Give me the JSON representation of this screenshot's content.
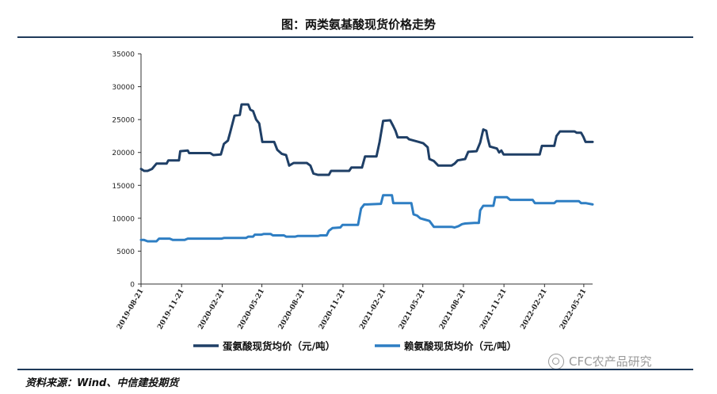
{
  "title": "图：两类氨基酸现货价格走势",
  "source": "资料来源：Wind、中信建投期货",
  "watermark": "CFC农产品研究",
  "colors": {
    "series1": "#1f3f66",
    "series2": "#2e7ec3",
    "axis": "#333333",
    "rule": "#1f3a5a"
  },
  "chart_data": {
    "type": "line",
    "ylim": [
      0,
      35000
    ],
    "yticks": [
      0,
      5000,
      10000,
      15000,
      20000,
      25000,
      30000,
      35000
    ],
    "xlim": [
      "2019-08-21",
      "2022-06-10"
    ],
    "xticks": [
      "2019-08-21",
      "2019-11-21",
      "2020-02-21",
      "2020-05-21",
      "2020-08-21",
      "2020-11-21",
      "2021-02-21",
      "2021-05-21",
      "2021-08-21",
      "2021-11-21",
      "2022-02-21",
      "2022-05-21"
    ],
    "legend_position": "bottom",
    "grid": false,
    "series": [
      {
        "name": "蛋氨酸现货均价（元/吨）",
        "points": [
          [
            "2019-08-21",
            17500
          ],
          [
            "2019-08-28",
            17200
          ],
          [
            "2019-09-05",
            17200
          ],
          [
            "2019-09-15",
            17500
          ],
          [
            "2019-09-25",
            18300
          ],
          [
            "2019-10-18",
            18300
          ],
          [
            "2019-10-22",
            18800
          ],
          [
            "2019-11-15",
            18800
          ],
          [
            "2019-11-18",
            20200
          ],
          [
            "2019-12-05",
            20300
          ],
          [
            "2019-12-08",
            19900
          ],
          [
            "2020-01-25",
            19900
          ],
          [
            "2020-02-01",
            19600
          ],
          [
            "2020-02-18",
            19700
          ],
          [
            "2020-02-25",
            21300
          ],
          [
            "2020-03-05",
            21800
          ],
          [
            "2020-03-10",
            23000
          ],
          [
            "2020-03-20",
            25600
          ],
          [
            "2020-04-01",
            25700
          ],
          [
            "2020-04-05",
            27300
          ],
          [
            "2020-04-20",
            27300
          ],
          [
            "2020-04-25",
            26500
          ],
          [
            "2020-05-01",
            26300
          ],
          [
            "2020-05-08",
            25000
          ],
          [
            "2020-05-15",
            24400
          ],
          [
            "2020-05-22",
            21600
          ],
          [
            "2020-06-18",
            21600
          ],
          [
            "2020-06-25",
            20400
          ],
          [
            "2020-07-05",
            19800
          ],
          [
            "2020-07-15",
            19600
          ],
          [
            "2020-07-22",
            18000
          ],
          [
            "2020-08-01",
            18400
          ],
          [
            "2020-08-31",
            18400
          ],
          [
            "2020-09-08",
            18000
          ],
          [
            "2020-09-15",
            16800
          ],
          [
            "2020-09-25",
            16600
          ],
          [
            "2020-10-20",
            16600
          ],
          [
            "2020-10-25",
            17200
          ],
          [
            "2020-12-05",
            17200
          ],
          [
            "2020-12-10",
            17700
          ],
          [
            "2021-01-03",
            17700
          ],
          [
            "2021-01-10",
            19400
          ],
          [
            "2021-02-05",
            19400
          ],
          [
            "2021-02-12",
            21600
          ],
          [
            "2021-02-20",
            24800
          ],
          [
            "2021-03-08",
            24900
          ],
          [
            "2021-03-15",
            24000
          ],
          [
            "2021-03-20",
            23300
          ],
          [
            "2021-03-25",
            22300
          ],
          [
            "2021-04-15",
            22300
          ],
          [
            "2021-04-20",
            22000
          ],
          [
            "2021-05-12",
            21600
          ],
          [
            "2021-05-22",
            21400
          ],
          [
            "2021-06-01",
            20800
          ],
          [
            "2021-06-05",
            19000
          ],
          [
            "2021-06-15",
            18700
          ],
          [
            "2021-06-25",
            18000
          ],
          [
            "2021-07-25",
            18000
          ],
          [
            "2021-08-01",
            18300
          ],
          [
            "2021-08-08",
            18800
          ],
          [
            "2021-08-25",
            19000
          ],
          [
            "2021-09-01",
            20100
          ],
          [
            "2021-09-20",
            20200
          ],
          [
            "2021-09-28",
            21500
          ],
          [
            "2021-10-05",
            23500
          ],
          [
            "2021-10-12",
            23300
          ],
          [
            "2021-10-15",
            22200
          ],
          [
            "2021-10-20",
            20900
          ],
          [
            "2021-11-05",
            20600
          ],
          [
            "2021-11-10",
            20000
          ],
          [
            "2021-11-15",
            20300
          ],
          [
            "2021-11-20",
            19700
          ],
          [
            "2022-02-10",
            19700
          ],
          [
            "2022-02-15",
            21000
          ],
          [
            "2022-03-15",
            21000
          ],
          [
            "2022-03-20",
            22500
          ],
          [
            "2022-03-28",
            23200
          ],
          [
            "2022-04-30",
            23200
          ],
          [
            "2022-05-05",
            23000
          ],
          [
            "2022-05-15",
            23000
          ],
          [
            "2022-05-20",
            22400
          ],
          [
            "2022-05-25",
            21600
          ],
          [
            "2022-06-10",
            21600
          ]
        ]
      },
      {
        "name": "赖氨酸现货均价（元/吨）",
        "points": [
          [
            "2019-08-21",
            6700
          ],
          [
            "2019-08-28",
            6700
          ],
          [
            "2019-09-05",
            6500
          ],
          [
            "2019-09-25",
            6500
          ],
          [
            "2019-10-01",
            6900
          ],
          [
            "2019-10-25",
            6900
          ],
          [
            "2019-11-01",
            6700
          ],
          [
            "2019-11-28",
            6700
          ],
          [
            "2019-12-05",
            6900
          ],
          [
            "2020-02-20",
            6900
          ],
          [
            "2020-02-25",
            7000
          ],
          [
            "2020-04-15",
            7000
          ],
          [
            "2020-04-20",
            7200
          ],
          [
            "2020-05-01",
            7200
          ],
          [
            "2020-05-05",
            7500
          ],
          [
            "2020-05-20",
            7500
          ],
          [
            "2020-05-25",
            7600
          ],
          [
            "2020-06-10",
            7600
          ],
          [
            "2020-06-15",
            7400
          ],
          [
            "2020-07-10",
            7400
          ],
          [
            "2020-07-15",
            7200
          ],
          [
            "2020-08-05",
            7200
          ],
          [
            "2020-08-10",
            7300
          ],
          [
            "2020-09-25",
            7300
          ],
          [
            "2020-10-01",
            7400
          ],
          [
            "2020-10-15",
            7400
          ],
          [
            "2020-10-20",
            8100
          ],
          [
            "2020-10-28",
            8500
          ],
          [
            "2020-11-15",
            8600
          ],
          [
            "2020-11-20",
            9000
          ],
          [
            "2020-12-01",
            9000
          ],
          [
            "2020-12-25",
            9000
          ],
          [
            "2021-01-01",
            11500
          ],
          [
            "2021-01-08",
            12100
          ],
          [
            "2021-01-15",
            12100
          ],
          [
            "2021-02-15",
            12200
          ],
          [
            "2021-02-20",
            13500
          ],
          [
            "2021-03-12",
            13500
          ],
          [
            "2021-03-15",
            12300
          ],
          [
            "2021-04-25",
            12300
          ],
          [
            "2021-04-30",
            10600
          ],
          [
            "2021-05-08",
            10400
          ],
          [
            "2021-05-15",
            10000
          ],
          [
            "2021-05-25",
            9800
          ],
          [
            "2021-06-05",
            9600
          ],
          [
            "2021-06-15",
            8700
          ],
          [
            "2021-07-25",
            8700
          ],
          [
            "2021-08-01",
            8600
          ],
          [
            "2021-08-10",
            8800
          ],
          [
            "2021-08-18",
            9100
          ],
          [
            "2021-08-25",
            9200
          ],
          [
            "2021-09-15",
            9300
          ],
          [
            "2021-09-25",
            9300
          ],
          [
            "2021-09-28",
            11200
          ],
          [
            "2021-10-05",
            11900
          ],
          [
            "2021-10-28",
            11900
          ],
          [
            "2021-11-01",
            13200
          ],
          [
            "2021-11-28",
            13200
          ],
          [
            "2021-12-05",
            12800
          ],
          [
            "2022-01-25",
            12800
          ],
          [
            "2022-01-30",
            12300
          ],
          [
            "2022-03-15",
            12300
          ],
          [
            "2022-03-20",
            12600
          ],
          [
            "2022-05-10",
            12600
          ],
          [
            "2022-05-15",
            12300
          ],
          [
            "2022-05-25",
            12300
          ],
          [
            "2022-06-10",
            12100
          ]
        ]
      }
    ]
  }
}
